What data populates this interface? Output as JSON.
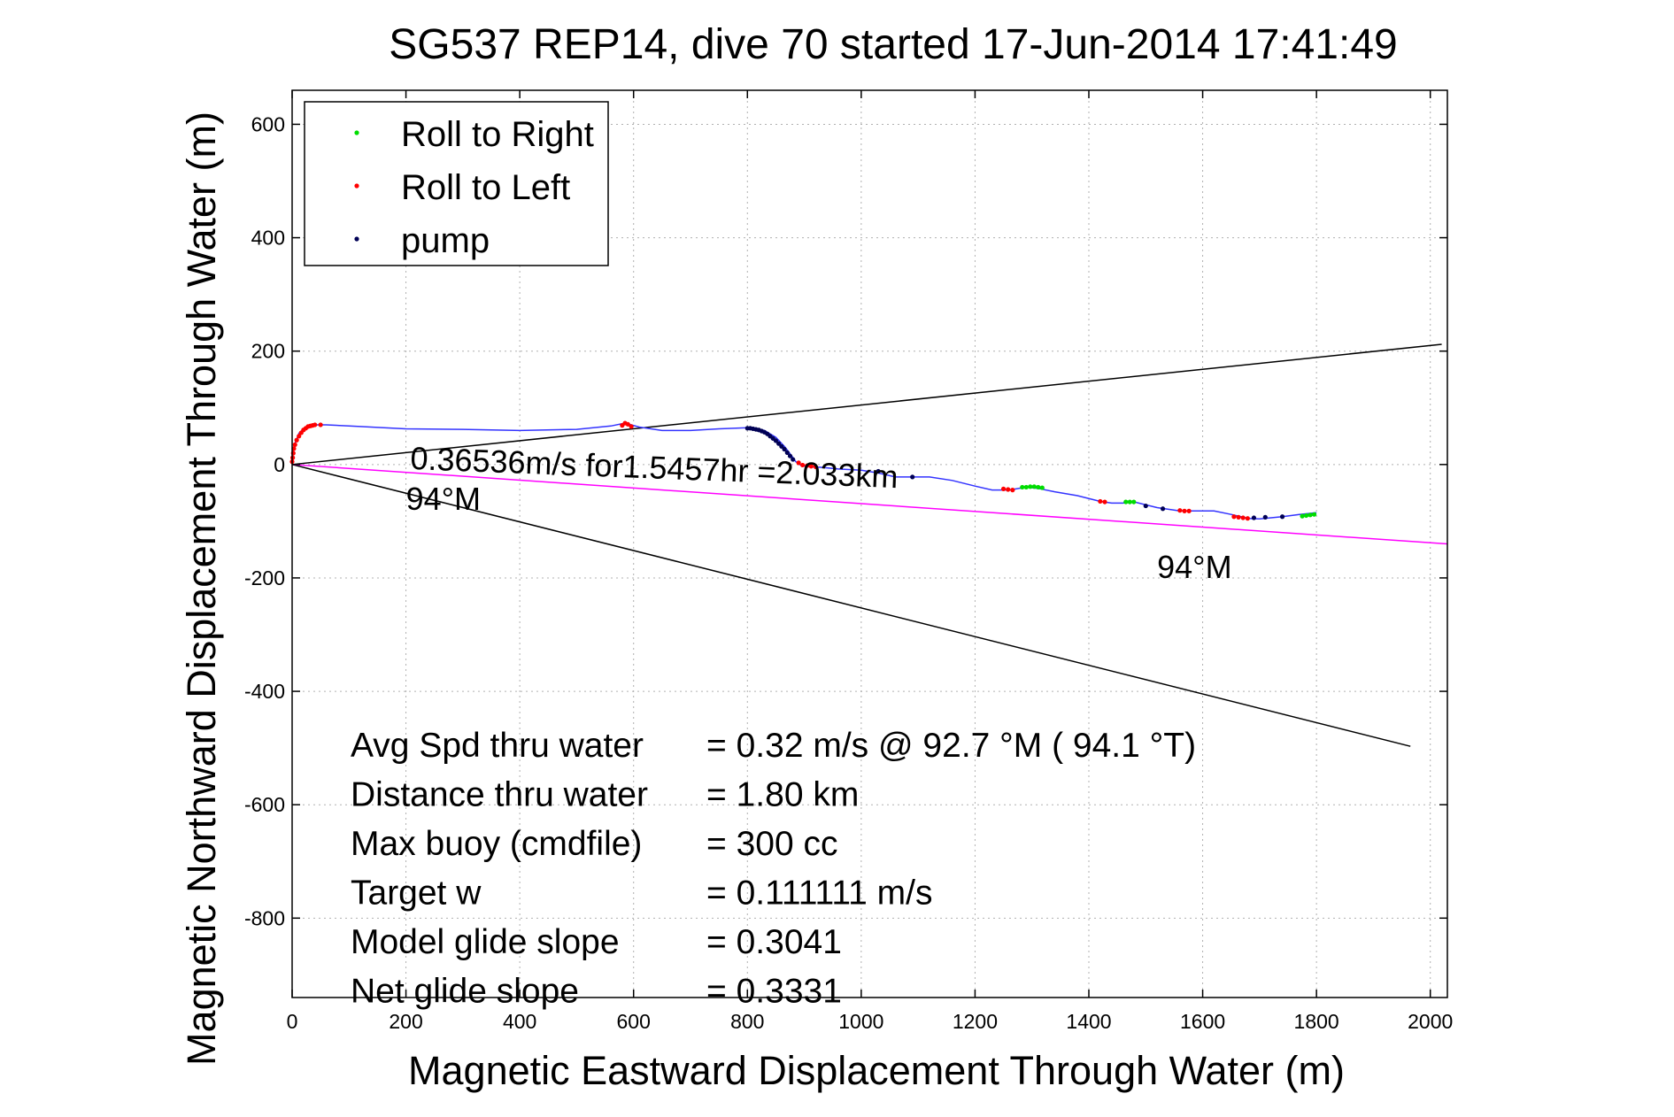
{
  "chart_data": {
    "type": "scatter",
    "title": "SG537 REP14, dive 70 started 17-Jun-2014 17:41:49",
    "xlabel": "Magnetic Eastward Displacement Through Water (m)",
    "ylabel": "Magnetic Northward Displacement Through Water (m)",
    "xlim": [
      0,
      2030
    ],
    "ylim": [
      -940,
      660
    ],
    "xticks": [
      0,
      200,
      400,
      600,
      800,
      1000,
      1200,
      1400,
      1600,
      1800,
      2000
    ],
    "yticks": [
      600,
      400,
      200,
      0,
      -200,
      -400,
      -600,
      -800
    ],
    "grid": true,
    "legend_position": "top-left",
    "colors": {
      "track": "#3333ff",
      "roll_right": "#00dd00",
      "roll_left": "#ff0000",
      "pump": "#000055",
      "heading_line": "#ff00ff",
      "bound_line": "#000000"
    },
    "legend": [
      {
        "label": "Roll to Right",
        "color": "#00dd00"
      },
      {
        "label": "Roll to Left",
        "color": "#ff0000"
      },
      {
        "label": "pump",
        "color": "#000055"
      }
    ],
    "track": {
      "x": [
        0,
        2,
        6,
        12,
        20,
        30,
        45,
        60,
        100,
        200,
        300,
        400,
        500,
        560,
        585,
        610,
        650,
        700,
        750,
        800,
        830,
        850,
        865,
        878,
        885,
        895,
        910,
        930,
        960,
        1000,
        1030,
        1060,
        1090,
        1120,
        1160,
        1200,
        1230,
        1260,
        1290,
        1310,
        1340,
        1380,
        1420,
        1440,
        1460,
        1480,
        1520,
        1560,
        1590,
        1620,
        1650,
        1680,
        1700,
        1740,
        1770,
        1800
      ],
      "y": [
        0,
        25,
        40,
        55,
        63,
        68,
        70,
        70,
        68,
        63,
        62,
        60,
        62,
        68,
        73,
        66,
        60,
        60,
        63,
        65,
        60,
        48,
        32,
        15,
        5,
        -2,
        -4,
        -5,
        -8,
        -10,
        -15,
        -22,
        -22,
        -22,
        -28,
        -38,
        -45,
        -45,
        -40,
        -42,
        -48,
        -55,
        -65,
        -68,
        -68,
        -66,
        -76,
        -82,
        -82,
        -82,
        -88,
        -95,
        -96,
        -92,
        -88,
        -85
      ]
    },
    "roll_right": {
      "x": [
        1283,
        1290,
        1297,
        1304,
        1311,
        1318,
        1465,
        1472,
        1479,
        1775,
        1782,
        1789,
        1796
      ],
      "y": [
        -40,
        -40,
        -39,
        -39,
        -40,
        -41,
        -66,
        -66,
        -66,
        -91,
        -90,
        -89,
        -88
      ]
    },
    "roll_left": {
      "x": [
        0,
        1,
        2,
        3,
        5,
        8,
        12,
        16,
        20,
        24,
        28,
        32,
        36,
        40,
        50,
        580,
        585,
        590,
        596,
        890,
        897,
        905,
        912,
        920,
        1250,
        1258,
        1266,
        1420,
        1428,
        1560,
        1568,
        1576,
        1655,
        1663,
        1671,
        1679
      ],
      "y": [
        5,
        12,
        20,
        28,
        35,
        43,
        50,
        56,
        61,
        64,
        67,
        68,
        69,
        70,
        70,
        69,
        73,
        71,
        67,
        3,
        -1,
        -2,
        -3,
        -4,
        -43,
        -44,
        -45,
        -65,
        -66,
        -81,
        -82,
        -82,
        -92,
        -93,
        -94,
        -95
      ]
    },
    "pump": {
      "x": [
        800,
        805,
        810,
        815,
        820,
        825,
        830,
        835,
        840,
        845,
        850,
        855,
        860,
        865,
        870,
        875,
        880,
        1030,
        1090,
        1500,
        1530,
        1690,
        1710,
        1740
      ],
      "y": [
        64,
        64,
        63,
        62,
        61,
        59,
        57,
        54,
        50,
        46,
        42,
        37,
        32,
        27,
        21,
        15,
        9,
        -12,
        -22,
        -73,
        -78,
        -94,
        -93,
        -92
      ]
    },
    "reference_lines": [
      {
        "name": "upper_bound",
        "x": [
          0,
          2020
        ],
        "y": [
          0,
          212
        ]
      },
      {
        "name": "lower_bound",
        "x": [
          0,
          1965
        ],
        "y": [
          0,
          -497
        ]
      },
      {
        "name": "heading",
        "x": [
          0,
          2030
        ],
        "y": [
          0,
          -140
        ]
      }
    ],
    "annotations": [
      {
        "text": "0.36536m/s for1.5457hr =2.033km",
        "x": 207,
        "y": -8
      },
      {
        "text": "94°M",
        "x": 200,
        "y": -80
      },
      {
        "text": "94°M",
        "x": 1520,
        "y": -200
      }
    ],
    "stats": [
      {
        "label": "Avg Spd thru water",
        "value": "=  0.32 m/s @  92.7 °M ( 94.1 °T)"
      },
      {
        "label": "Distance thru water",
        "value": "=  1.80 km"
      },
      {
        "label": "Max buoy (cmdfile)",
        "value": "= 300 cc"
      },
      {
        "label": "Target w",
        "value": "= 0.111111 m/s"
      },
      {
        "label": "Model glide slope",
        "value": "= 0.3041"
      },
      {
        "label": "Net glide slope",
        "value": "= 0.3331"
      }
    ]
  }
}
